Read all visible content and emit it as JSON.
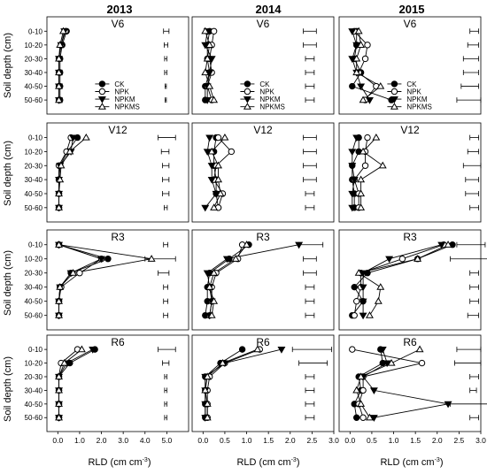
{
  "figure": {
    "year_labels": [
      "2013",
      "2014",
      "2015"
    ],
    "y_axis_label": "Soil depth (cm)",
    "x_axis_label": "RLD (cm cm",
    "x_axis_label_sup": "-3",
    "x_axis_label_end": ")"
  },
  "chart_data": {
    "type": "line",
    "layout": "4 rows (growth stages) x 3 columns (years)",
    "depth_categories": [
      "0-10",
      "10-20",
      "20-30",
      "30-40",
      "40-50",
      "50-60"
    ],
    "stages": [
      "V6",
      "V12",
      "R3",
      "R6"
    ],
    "years": [
      "2013",
      "2014",
      "2015"
    ],
    "x_axes": [
      {
        "year": "2013",
        "ticks": [
          "0.0",
          "1.0",
          "2.0",
          "3.0",
          "4.0",
          "5.0"
        ],
        "xlim": [
          -0.5,
          6.0
        ]
      },
      {
        "year": "2014",
        "ticks": [
          "0.0",
          "0.5",
          "1.0",
          "1.5",
          "2.0",
          "2.5",
          "3.0"
        ],
        "xlim": [
          -0.25,
          3.0
        ]
      },
      {
        "year": "2015",
        "ticks": [
          "0.0",
          "0.5",
          "1.0",
          "1.5",
          "2.0",
          "2.5",
          "3.0"
        ],
        "xlim": [
          -0.25,
          3.0
        ]
      }
    ],
    "series_names": [
      "CK",
      "NPK",
      "NPKM",
      "NPKMS"
    ],
    "markers": [
      "filled-circle",
      "open-circle",
      "filled-triangle-down",
      "open-triangle-up"
    ],
    "panels": [
      {
        "stage": "V6",
        "year": "2013",
        "show_legend": true,
        "series": [
          [
            0.4,
            0.2,
            0.1,
            0.1,
            0.1,
            0.1
          ],
          [
            0.35,
            0.15,
            0.05,
            0.05,
            0.05,
            0.05
          ],
          [
            0.3,
            0.15,
            0.05,
            0.05,
            0.05,
            0.05
          ],
          [
            0.25,
            0.1,
            0.05,
            0.05,
            0.05,
            0.05
          ]
        ],
        "error_bars": [
          [
            4.85,
            5.1
          ],
          [
            4.88,
            5.05
          ],
          [
            4.9,
            5.0
          ],
          [
            4.9,
            5.0
          ],
          [
            4.92,
            4.98
          ],
          [
            4.92,
            4.98
          ]
        ]
      },
      {
        "stage": "V6",
        "year": "2014",
        "show_legend": true,
        "series": [
          [
            0.15,
            0.1,
            0.1,
            0.15,
            0.05,
            0.05
          ],
          [
            0.25,
            0.2,
            0.15,
            0.2,
            0.1,
            0.2
          ],
          [
            0.1,
            0.05,
            0.2,
            0.15,
            0.1,
            0.1
          ],
          [
            0.05,
            0.15,
            0.1,
            0.05,
            0.15,
            0.25
          ]
        ],
        "error_bars": [
          [
            2.3,
            2.6
          ],
          [
            2.3,
            2.6
          ],
          [
            2.35,
            2.55
          ],
          [
            2.35,
            2.55
          ],
          [
            2.35,
            2.55
          ],
          [
            2.35,
            2.55
          ]
        ]
      },
      {
        "stage": "V6",
        "year": "2015",
        "show_legend": true,
        "series": [
          [
            0.15,
            0.15,
            0.1,
            0.25,
            0.05,
            0.95
          ],
          [
            0.1,
            0.4,
            0.35,
            0.2,
            0.6,
            0.35
          ],
          [
            0.05,
            0.15,
            0.05,
            0.15,
            0.25,
            0.45
          ],
          [
            0.2,
            0.25,
            0.15,
            0.15,
            0.7,
            0.3
          ]
        ],
        "error_bars": [
          [
            2.75,
            2.95
          ],
          [
            2.7,
            2.95
          ],
          [
            2.6,
            2.95
          ],
          [
            2.6,
            2.95
          ],
          [
            2.55,
            2.95
          ],
          [
            2.45,
            3.0
          ]
        ]
      },
      {
        "stage": "V12",
        "year": "2013",
        "show_legend": false,
        "series": [
          [
            0.9,
            0.45,
            0.1,
            0.05,
            0.05,
            0.05
          ],
          [
            0.6,
            0.4,
            0.05,
            0.05,
            0.05,
            0.05
          ],
          [
            0.7,
            0.6,
            0.1,
            0.05,
            0.05,
            0.05
          ],
          [
            1.3,
            0.55,
            0.15,
            0.1,
            0.05,
            0.05
          ]
        ],
        "error_bars": [
          [
            4.6,
            5.4
          ],
          [
            4.75,
            5.1
          ],
          [
            4.8,
            5.1
          ],
          [
            4.8,
            5.1
          ],
          [
            4.8,
            5.1
          ],
          [
            4.88,
            5.02
          ]
        ]
      },
      {
        "stage": "V12",
        "year": "2014",
        "show_legend": false,
        "series": [
          [
            0.3,
            0.25,
            0.25,
            0.3,
            0.3,
            0.35
          ],
          [
            0.35,
            0.65,
            0.3,
            0.25,
            0.45,
            0.35
          ],
          [
            0.15,
            0.1,
            0.2,
            0.2,
            0.3,
            0.05
          ],
          [
            0.5,
            0.2,
            0.35,
            0.35,
            0.4,
            0.25
          ]
        ],
        "error_bars": [
          [
            2.3,
            2.6
          ],
          [
            2.3,
            2.6
          ],
          [
            2.3,
            2.6
          ],
          [
            2.3,
            2.6
          ],
          [
            2.35,
            2.55
          ],
          [
            2.35,
            2.55
          ]
        ]
      },
      {
        "stage": "V12",
        "year": "2015",
        "show_legend": false,
        "series": [
          [
            0.2,
            0.2,
            0.05,
            0.05,
            0.1,
            0.1
          ],
          [
            0.4,
            0.35,
            0.35,
            0.1,
            0.2,
            0.2
          ],
          [
            0.15,
            0.05,
            0.05,
            0.1,
            0.05,
            0.05
          ],
          [
            0.6,
            0.3,
            0.75,
            0.25,
            0.25,
            0.25
          ]
        ],
        "error_bars": [
          [
            2.75,
            2.95
          ],
          [
            2.7,
            2.95
          ],
          [
            2.6,
            3.0
          ],
          [
            2.65,
            2.95
          ],
          [
            2.65,
            2.95
          ],
          [
            2.75,
            2.95
          ]
        ]
      },
      {
        "stage": "R3",
        "year": "2013",
        "show_legend": false,
        "series": [
          [
            0.05,
            2.3,
            0.6,
            0.1,
            0.05,
            0.05
          ],
          [
            0.05,
            2.0,
            1.0,
            0.15,
            0.05,
            0.05
          ],
          [
            0.05,
            2.0,
            0.6,
            0.1,
            0.05,
            0.05
          ],
          [
            0.05,
            4.3,
            0.7,
            0.1,
            0.05,
            0.05
          ]
        ],
        "error_bars": [
          [
            4.85,
            5.05
          ],
          [
            4.0,
            5.4
          ],
          [
            4.6,
            5.1
          ],
          [
            4.85,
            5.05
          ],
          [
            4.85,
            5.05
          ],
          [
            4.85,
            5.05
          ]
        ]
      },
      {
        "stage": "R3",
        "year": "2014",
        "show_legend": false,
        "series": [
          [
            1.05,
            0.6,
            0.15,
            0.1,
            0.1,
            0.05
          ],
          [
            0.9,
            0.8,
            0.3,
            0.2,
            0.2,
            0.15
          ],
          [
            2.2,
            0.55,
            0.1,
            0.15,
            0.2,
            0.15
          ],
          [
            1.0,
            0.75,
            0.25,
            0.15,
            0.25,
            0.2
          ]
        ],
        "error_bars": [
          [
            2.2,
            2.75
          ],
          [
            2.3,
            2.6
          ],
          [
            2.3,
            2.6
          ],
          [
            2.35,
            2.55
          ],
          [
            2.35,
            2.55
          ],
          [
            2.35,
            2.55
          ]
        ]
      },
      {
        "stage": "R3",
        "year": "2015",
        "show_legend": false,
        "series": [
          [
            2.35,
            1.55,
            0.4,
            0.1,
            0.3,
            0.05
          ],
          [
            2.15,
            1.2,
            0.25,
            0.25,
            0.15,
            0.1
          ],
          [
            2.1,
            0.9,
            0.3,
            0.3,
            0.3,
            0.3
          ],
          [
            2.25,
            1.55,
            0.2,
            0.7,
            0.65,
            0.45
          ]
        ],
        "error_bars": [
          [
            2.45,
            3.1
          ],
          [
            2.3,
            3.2
          ],
          [
            2.75,
            2.95
          ],
          [
            2.75,
            2.95
          ],
          [
            2.75,
            2.95
          ],
          [
            2.7,
            2.95
          ]
        ]
      },
      {
        "stage": "R6",
        "year": "2013",
        "show_legend": false,
        "series": [
          [
            1.7,
            0.55,
            0.05,
            0.05,
            0.05,
            0.05
          ],
          [
            0.9,
            0.15,
            0.05,
            0.05,
            0.05,
            0.05
          ],
          [
            1.6,
            0.4,
            0.05,
            0.05,
            0.05,
            0.05
          ],
          [
            1.1,
            0.3,
            0.05,
            0.05,
            0.05,
            0.05
          ]
        ],
        "error_bars": [
          [
            4.6,
            5.4
          ],
          [
            4.8,
            5.1
          ],
          [
            4.9,
            5.0
          ],
          [
            4.9,
            5.0
          ],
          [
            4.9,
            5.0
          ],
          [
            4.9,
            5.0
          ]
        ]
      },
      {
        "stage": "R6",
        "year": "2014",
        "show_legend": false,
        "series": [
          [
            0.9,
            0.4,
            0.05,
            0.05,
            0.05,
            0.05
          ],
          [
            1.3,
            0.5,
            0.15,
            0.1,
            0.1,
            0.1
          ],
          [
            1.8,
            0.5,
            0.05,
            0.05,
            0.05,
            0.05
          ],
          [
            1.25,
            0.45,
            0.1,
            0.05,
            0.1,
            0.1
          ]
        ],
        "error_bars": [
          [
            2.05,
            2.95
          ],
          [
            2.2,
            2.85
          ],
          [
            2.35,
            2.55
          ],
          [
            2.35,
            2.55
          ],
          [
            2.35,
            2.55
          ],
          [
            2.35,
            2.55
          ]
        ]
      },
      {
        "stage": "R6",
        "year": "2015",
        "show_legend": false,
        "series": [
          [
            0.7,
            0.75,
            0.2,
            0.25,
            0.1,
            0.15
          ],
          [
            0.05,
            1.65,
            0.3,
            0.3,
            0.2,
            0.3
          ],
          [
            0.75,
            0.85,
            0.3,
            0.55,
            2.25,
            0.55
          ],
          [
            1.6,
            0.95,
            0.25,
            0.15,
            0.25,
            0.45
          ]
        ],
        "error_bars": [
          [
            2.45,
            3.0
          ],
          [
            2.4,
            3.0
          ],
          [
            2.75,
            2.95
          ],
          [
            2.75,
            2.9
          ],
          [
            2.3,
            3.35
          ],
          [
            2.75,
            2.95
          ]
        ]
      }
    ]
  }
}
